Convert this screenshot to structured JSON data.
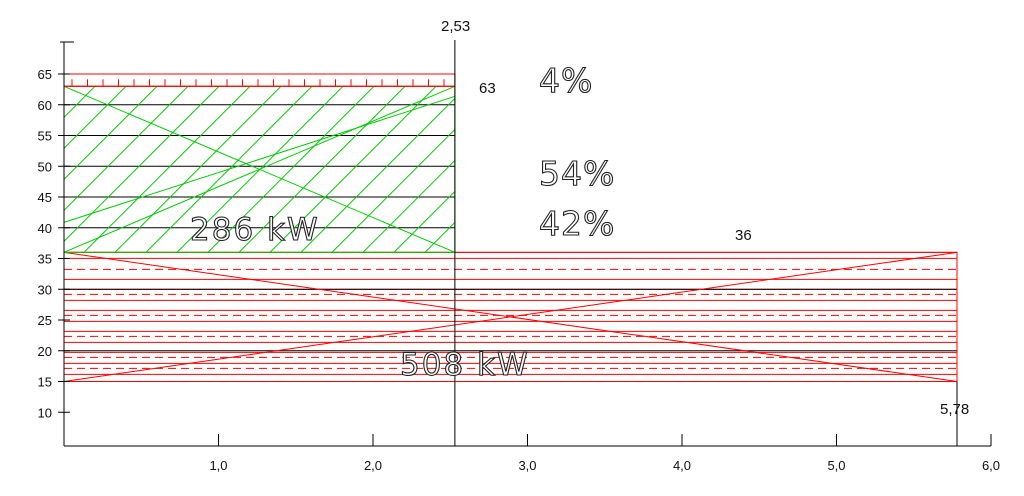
{
  "chart_data": {
    "type": "diagram",
    "x_ticks": [
      "1,0",
      "2,0",
      "3,0",
      "4,0",
      "5,0",
      "6,0"
    ],
    "x_tick_values": [
      1,
      2,
      3,
      4,
      5,
      6
    ],
    "y_ticks": [
      "10",
      "15",
      "20",
      "25",
      "30",
      "35",
      "40",
      "45",
      "50",
      "55",
      "60",
      "65"
    ],
    "y_tick_values": [
      10,
      15,
      20,
      25,
      30,
      35,
      40,
      45,
      50,
      55,
      60,
      65
    ],
    "xlim": [
      0,
      6
    ],
    "ylim": [
      5,
      70
    ],
    "regions": [
      {
        "name": "upper-band",
        "x": [
          0,
          2.53
        ],
        "y": [
          63,
          65
        ],
        "color": "#ff0000"
      },
      {
        "name": "green-block",
        "x": [
          0,
          2.53
        ],
        "y": [
          36,
          63
        ],
        "color": "#00cc00"
      },
      {
        "name": "red-block",
        "x": [
          0,
          5.78
        ],
        "y": [
          15,
          36
        ],
        "color": "#ff0000"
      }
    ],
    "divider_x": 2.53,
    "labels": {
      "x_divider": "2,53",
      "x_end": "5,78",
      "y_63": "63",
      "y_36": "36",
      "pct_top": "4%",
      "pct_mid": "54%",
      "pct_low": "42%",
      "power_green": "286 kW",
      "power_red": "508 kW"
    },
    "colors": {
      "axis": "#000000",
      "green": "#00cc00",
      "red": "#ff0000",
      "text": "#111111"
    }
  }
}
